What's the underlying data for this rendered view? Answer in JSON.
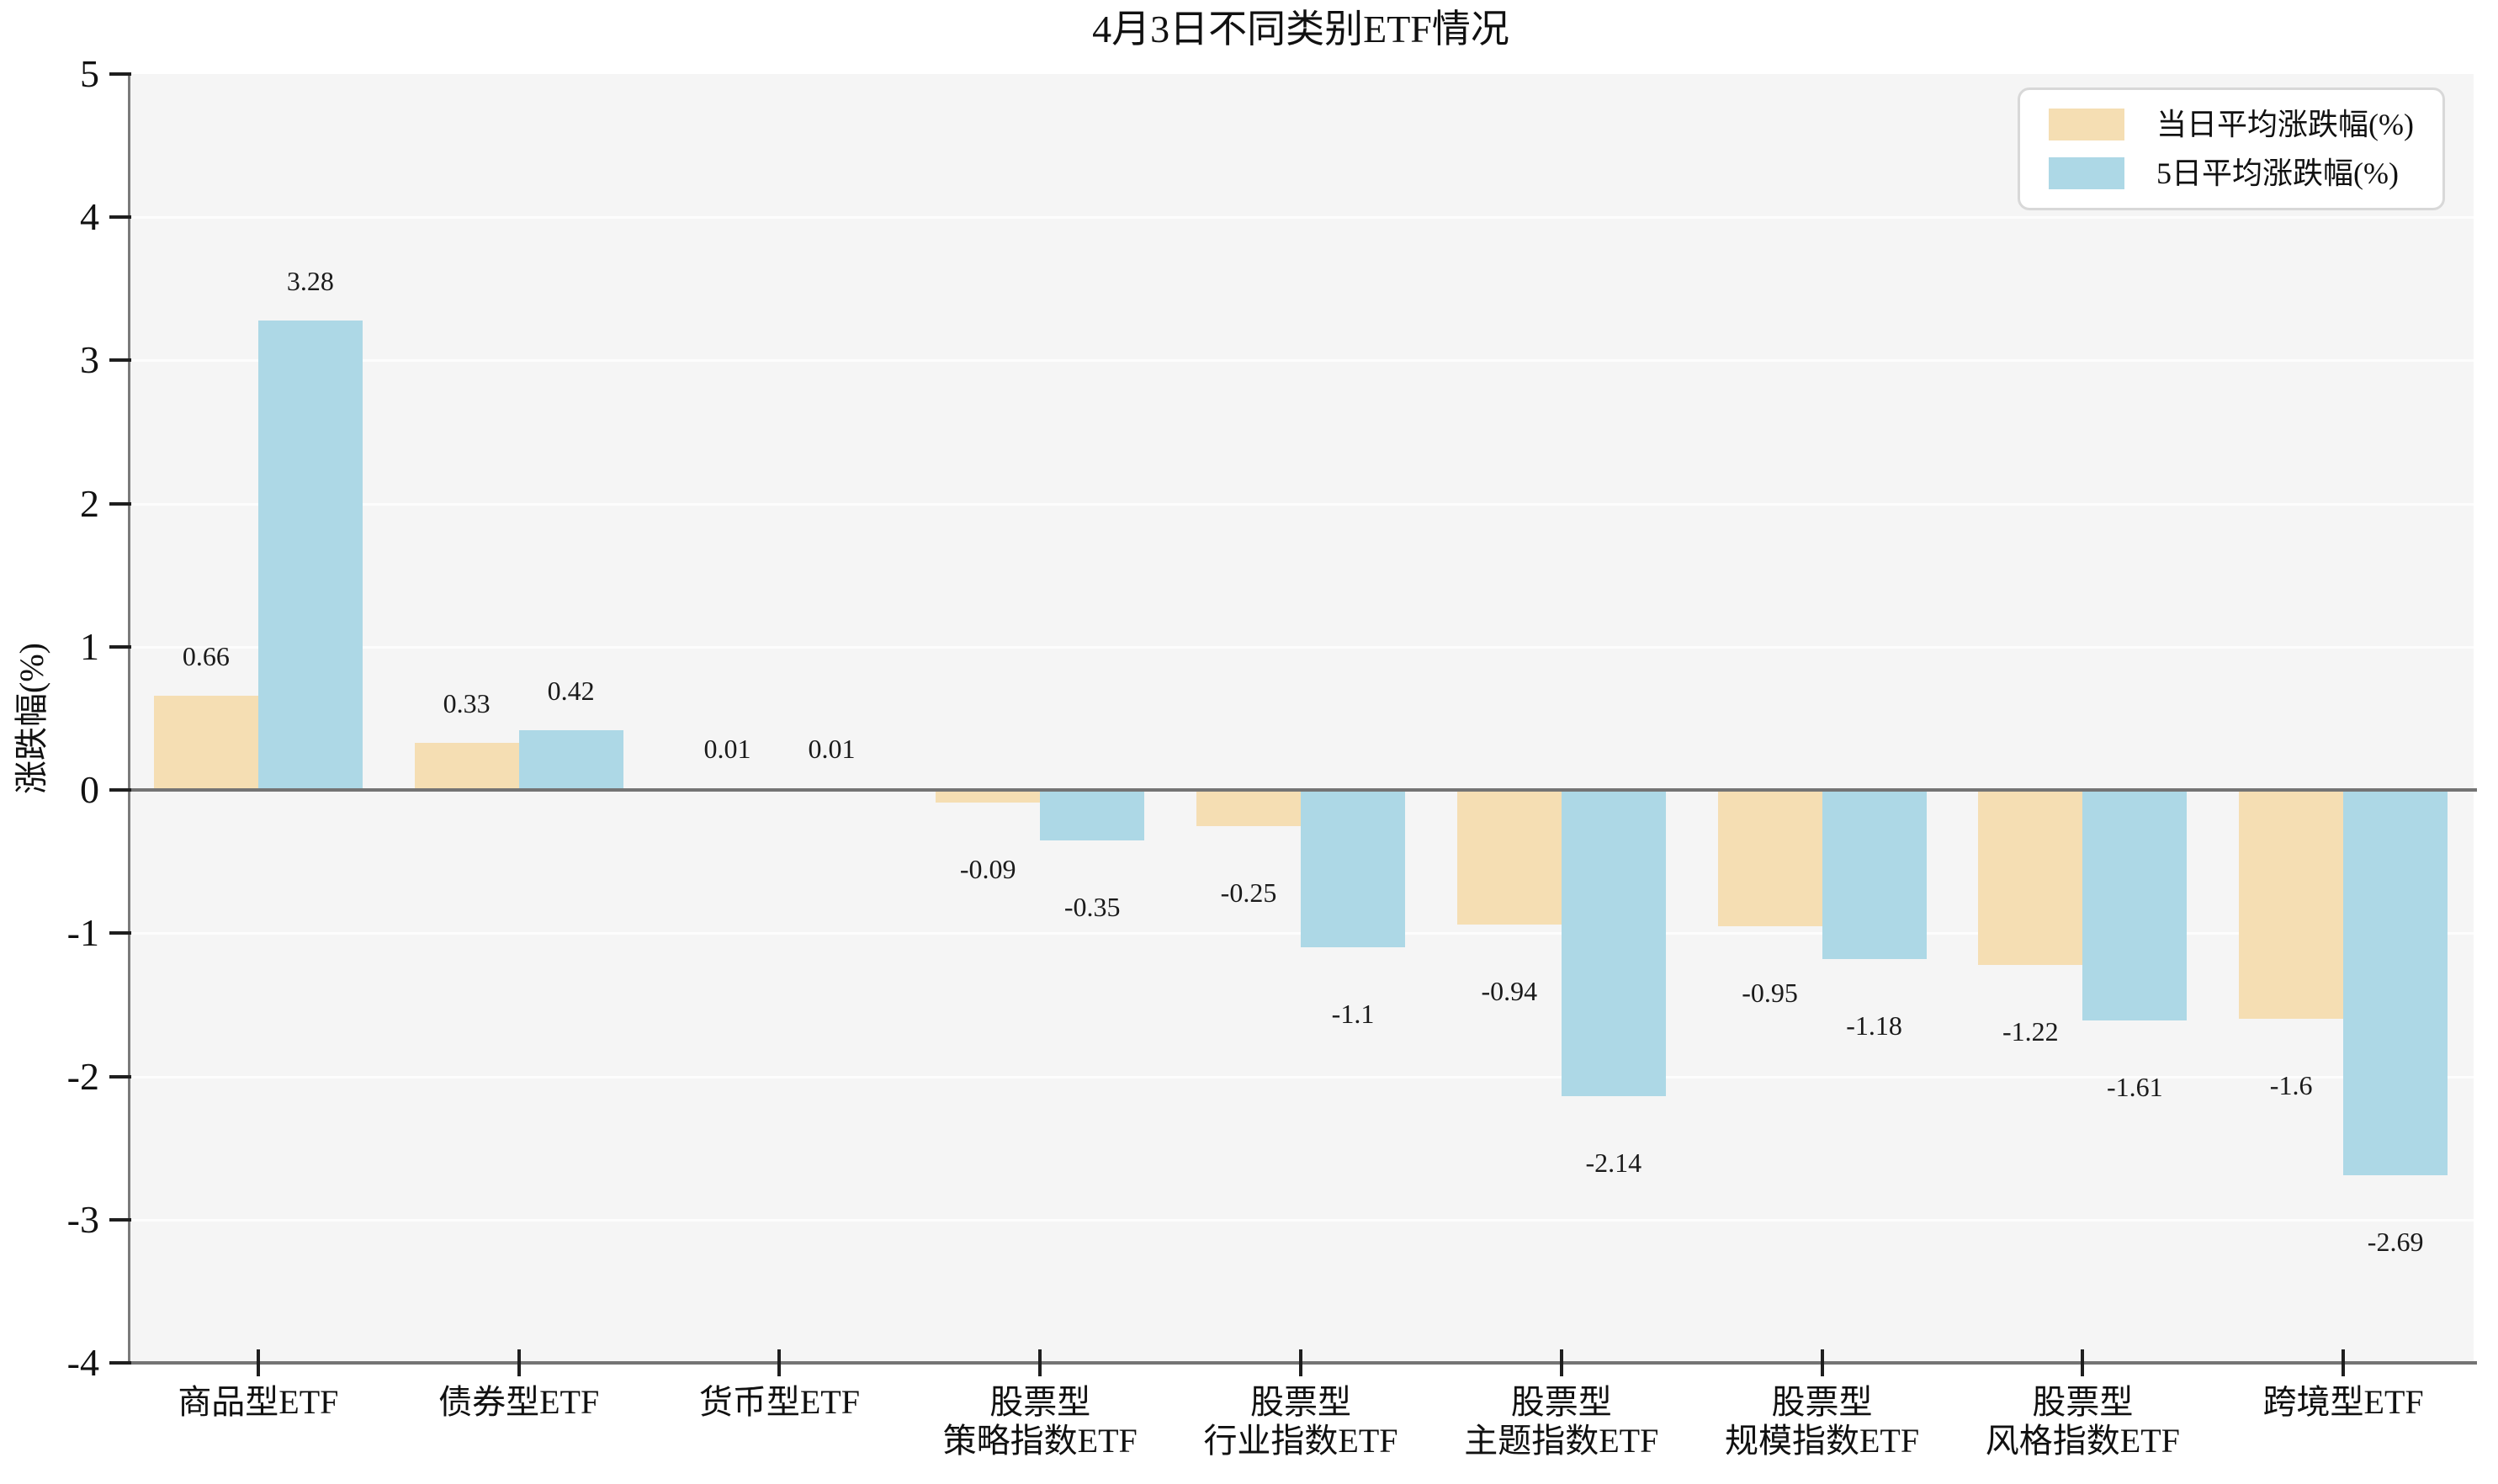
{
  "title": "4月3日不同类别ETF情况",
  "chart_data": {
    "type": "bar",
    "title": "4月3日不同类别ETF情况",
    "xlabel": "",
    "ylabel": "涨跌幅(%)",
    "ylim": [
      -4,
      5
    ],
    "yticks": [
      5,
      4,
      3,
      2,
      1,
      0,
      -1,
      -2,
      -3,
      -4
    ],
    "grid": true,
    "legend_position": "upper right",
    "plot_facecolor": "#f5f5f5",
    "categories": [
      [
        "商品型ETF"
      ],
      [
        "债券型ETF"
      ],
      [
        "货币型ETF"
      ],
      [
        "股票型",
        "策略指数ETF"
      ],
      [
        "股票型",
        "行业指数ETF"
      ],
      [
        "股票型",
        "主题指数ETF"
      ],
      [
        "股票型",
        "规模指数ETF"
      ],
      [
        "股票型",
        "风格指数ETF"
      ],
      [
        "跨境型ETF"
      ]
    ],
    "series": [
      {
        "name": "当日平均涨跌幅(%)",
        "color": "#f5deb3",
        "values": [
          0.66,
          0.33,
          0.01,
          -0.09,
          -0.25,
          -0.94,
          -0.95,
          -1.22,
          -1.6
        ],
        "labels": [
          "0.66",
          "0.33",
          "0.01",
          "-0.09",
          "-0.25",
          "-0.94",
          "-0.95",
          "-1.22",
          "-1.6"
        ]
      },
      {
        "name": "5日平均涨跌幅(%)",
        "color": "#add8e6",
        "values": [
          3.28,
          0.42,
          0.01,
          -0.35,
          -1.1,
          -2.14,
          -1.18,
          -1.61,
          -2.69
        ],
        "labels": [
          "3.28",
          "0.42",
          "0.01",
          "-0.35",
          "-1.1",
          "-2.14",
          "-1.18",
          "-1.61",
          "-2.69"
        ]
      }
    ]
  }
}
